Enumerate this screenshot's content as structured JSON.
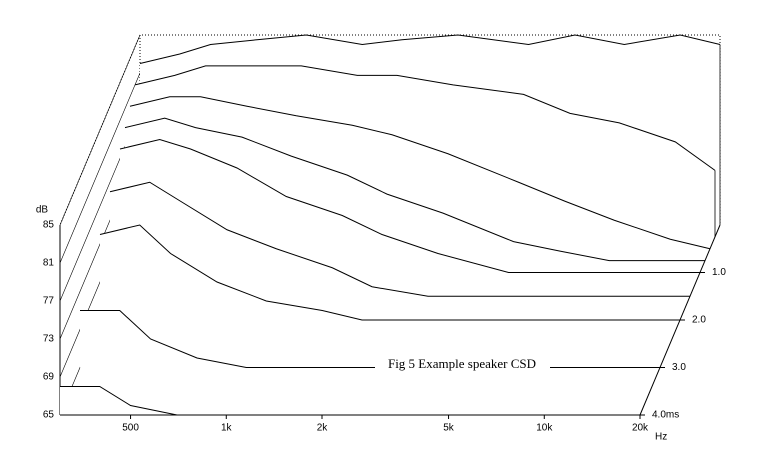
{
  "chart_data": {
    "type": "waterfall",
    "title": "Fig 5 Example speaker CSD",
    "ylabel": "dB",
    "xlabel": "Hz",
    "xscale": "log",
    "xlim": [
      300,
      20000
    ],
    "ylim": [
      65,
      85
    ],
    "zlim": [
      0,
      4
    ],
    "yticks": [
      65,
      69,
      73,
      77,
      81,
      85
    ],
    "xticks": [
      500,
      {
        "value": 1000,
        "label": "1k"
      },
      {
        "value": 2000,
        "label": "2k"
      },
      {
        "value": 5000,
        "label": "5k"
      },
      {
        "value": 10000,
        "label": "10k"
      },
      {
        "value": 20000,
        "label": "20k"
      }
    ],
    "zticks": [
      {
        "value": 1,
        "label": "1.0"
      },
      {
        "value": 2,
        "label": "2.0"
      },
      {
        "value": 3,
        "label": "3.0"
      },
      {
        "value": 4,
        "label": "4.0ms"
      }
    ],
    "x": [
      300,
      400,
      500,
      700,
      1000,
      1500,
      2000,
      3000,
      5000,
      7000,
      10000,
      15000,
      20000
    ],
    "slices": [
      {
        "time": 0,
        "values": [
          82,
          83,
          84,
          84.5,
          85,
          84,
          84.5,
          85,
          84,
          85,
          84,
          85,
          84
        ]
      },
      {
        "time": 0.25,
        "values": [
          81,
          82,
          83,
          83,
          83,
          82,
          82,
          81,
          80,
          78,
          77,
          75,
          72
        ]
      },
      {
        "time": 0.5,
        "values": [
          80,
          81,
          81,
          80,
          79,
          78,
          77,
          75,
          72,
          70,
          68,
          66,
          65
        ]
      },
      {
        "time": 0.75,
        "values": [
          79,
          80,
          79,
          78,
          76,
          74,
          72,
          70,
          67,
          66,
          65,
          65,
          65
        ]
      },
      {
        "time": 1,
        "values": [
          78,
          79,
          78,
          76,
          73,
          71,
          69,
          67,
          65,
          65,
          65,
          65,
          65
        ]
      },
      {
        "time": 1.5,
        "values": [
          76,
          77,
          75,
          72,
          70,
          68,
          66,
          65,
          65,
          65,
          65,
          65,
          65
        ]
      },
      {
        "time": 2,
        "values": [
          74,
          75,
          72,
          69,
          67,
          66,
          65,
          65,
          65,
          65,
          65,
          65,
          65
        ]
      },
      {
        "time": 3,
        "values": [
          71,
          71,
          68,
          66,
          65,
          65,
          65,
          65,
          65,
          65,
          65,
          65,
          65
        ]
      },
      {
        "time": 4,
        "values": [
          68,
          68,
          66,
          65,
          65,
          65,
          65,
          65,
          65,
          65,
          65,
          65,
          65
        ]
      }
    ]
  }
}
